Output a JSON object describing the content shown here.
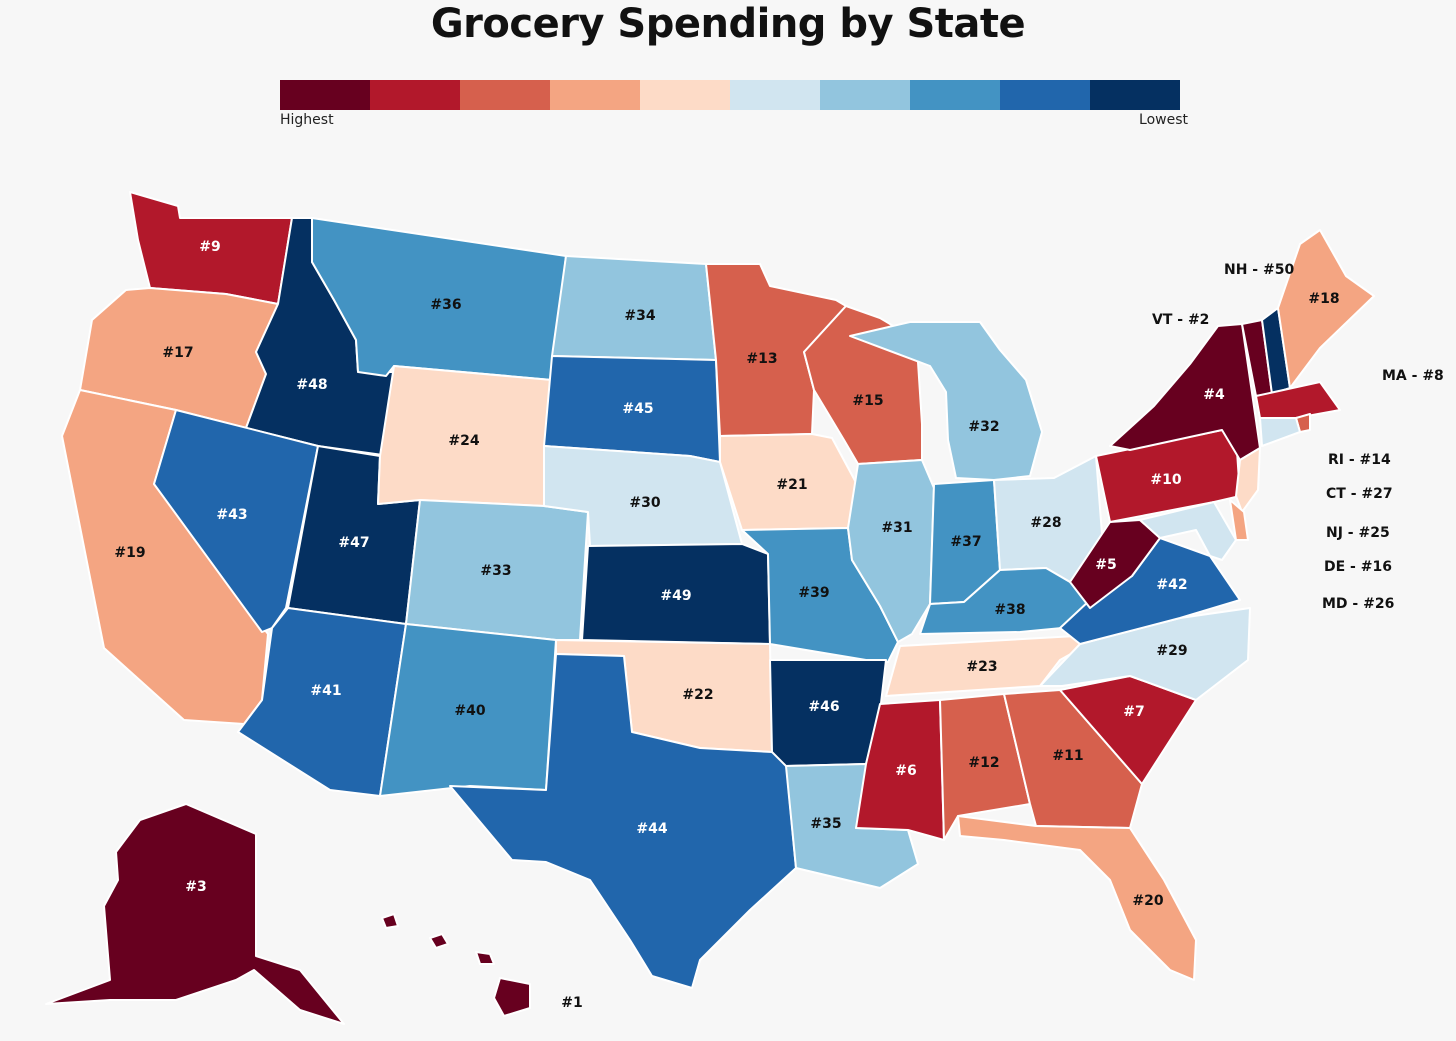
{
  "title": "Grocery Spending by State",
  "legend": {
    "high_label": "Highest",
    "low_label": "Lowest",
    "colors": [
      "#67001f",
      "#b2182b",
      "#d6604d",
      "#f4a582",
      "#fddbc7",
      "#d1e5f0",
      "#92c5de",
      "#4393c3",
      "#2166ac",
      "#053061"
    ]
  },
  "states": {
    "WA": "#9",
    "OR": "#17",
    "CA": "#19",
    "ID": "#48",
    "NV": "#43",
    "UT": "#47",
    "AZ": "#41",
    "MT": "#36",
    "WY": "#24",
    "CO": "#33",
    "NM": "#40",
    "ND": "#34",
    "SD": "#45",
    "NE": "#30",
    "KS": "#49",
    "OK": "#22",
    "TX": "#44",
    "MN": "#13",
    "IA": "#21",
    "MO": "#39",
    "AR": "#46",
    "LA": "#35",
    "WI": "#15",
    "IL": "#31",
    "MI": "#32",
    "IN": "#37",
    "OH": "#28",
    "KY": "#38",
    "TN": "#23",
    "MS": "#6",
    "AL": "#12",
    "GA": "#11",
    "FL": "#20",
    "SC": "#7",
    "NC": "#29",
    "VA": "#42",
    "WV": "#5",
    "PA": "#10",
    "NY": "#4",
    "ME": "#18",
    "AK": "#3",
    "HI": "#1"
  },
  "small_states": {
    "NH": "NH - #50",
    "VT": "VT - #2",
    "MA": "MA - #8",
    "RI": "RI - #14",
    "CT": "CT - #27",
    "NJ": "NJ - #25",
    "DE": "DE - #16",
    "MD": "MD - #26"
  }
}
